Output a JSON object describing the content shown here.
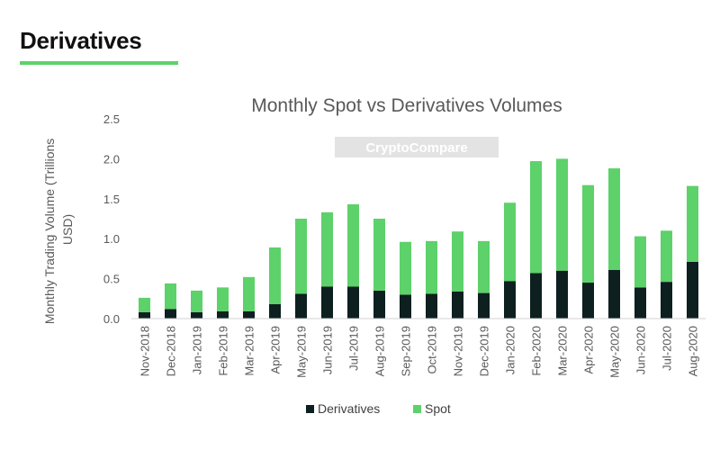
{
  "header": {
    "title": "Derivatives"
  },
  "colors": {
    "accent": "#5dd16a",
    "derivatives": "#0d1f1f",
    "spot": "#5dd16a"
  },
  "watermark": {
    "text": "CryptoCompare"
  },
  "chart_data": {
    "type": "bar",
    "stacked": true,
    "title": "Monthly Spot vs Derivatives Volumes",
    "xlabel": "",
    "ylabel": "Monthly Trading Volume (Trillions USD)",
    "ylabel_lines": [
      "Monthly Trading Volume (Trillions",
      "USD)"
    ],
    "ylim": [
      0,
      2.5
    ],
    "yticks": [
      "0.0",
      "0.5",
      "1.0",
      "1.5",
      "2.0",
      "2.5"
    ],
    "legend_position": "bottom",
    "categories": [
      "Nov-2018",
      "Dec-2018",
      "Jan-2019",
      "Feb-2019",
      "Mar-2019",
      "Apr-2019",
      "May-2019",
      "Jun-2019",
      "Jul-2019",
      "Aug-2019",
      "Sep-2019",
      "Oct-2019",
      "Nov-2019",
      "Dec-2019",
      "Jan-2020",
      "Feb-2020",
      "Mar-2020",
      "Apr-2020",
      "May-2020",
      "Jun-2020",
      "Jul-2020",
      "Aug-2020"
    ],
    "series": [
      {
        "name": "Derivatives",
        "color": "#0d1f1f",
        "values": [
          0.08,
          0.12,
          0.08,
          0.09,
          0.09,
          0.18,
          0.31,
          0.4,
          0.4,
          0.35,
          0.3,
          0.31,
          0.34,
          0.32,
          0.47,
          0.57,
          0.6,
          0.45,
          0.61,
          0.39,
          0.46,
          0.71
        ]
      },
      {
        "name": "Spot",
        "color": "#5dd16a",
        "values": [
          0.18,
          0.32,
          0.27,
          0.3,
          0.43,
          0.71,
          0.94,
          0.93,
          1.03,
          0.9,
          0.66,
          0.66,
          0.75,
          0.65,
          0.98,
          1.4,
          1.4,
          1.22,
          1.27,
          0.64,
          0.64,
          0.95
        ]
      }
    ]
  }
}
